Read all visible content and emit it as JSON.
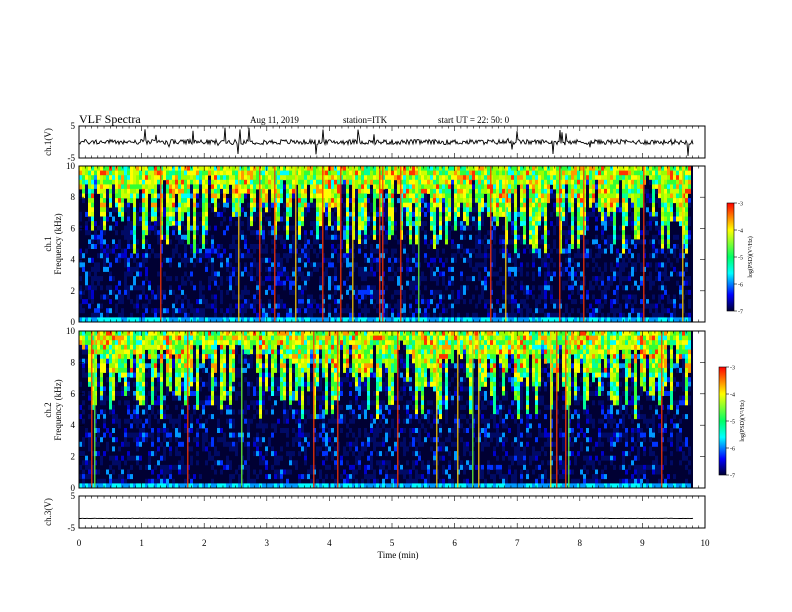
{
  "header": {
    "title": "VLF Spectra",
    "date": "Aug 11, 2019",
    "station": "station=ITK",
    "start": "start  UT  =   22: 50: 0"
  },
  "colors": {
    "background": "#ffffff",
    "spectrogram_floor": "#000033",
    "waveform": "#000000"
  },
  "colorbar": {
    "label": "log(PSD)(V²/Hz)",
    "ticks": [
      "-3",
      "-4",
      "-5",
      "-6",
      "-7"
    ],
    "scale": [
      "#ff0000",
      "#ffff00",
      "#00ff66",
      "#00ffff",
      "#0000ff",
      "#000033"
    ]
  },
  "chart_data": [
    {
      "type": "line",
      "panel": "ch1-waveform",
      "ylabel": "ch.1(V)",
      "ylim": [
        -5,
        5
      ],
      "yticks": [
        "5",
        "-5"
      ],
      "xlim": [
        0,
        10
      ],
      "baseline": 0,
      "series": [
        {
          "values": "noise around 0 V with spikes up to about ±5 V"
        }
      ]
    },
    {
      "type": "heatmap",
      "panel": "ch1-spectrogram",
      "ylabel": "ch.1\nFrequency (kHz)",
      "ylim": [
        0,
        10
      ],
      "yticks": [
        "0",
        "2",
        "4",
        "6",
        "8",
        "10"
      ],
      "xlim": [
        0,
        10
      ],
      "zlabel": "log(PSD)(V²/Hz)",
      "zlim": [
        -7,
        -3
      ]
    },
    {
      "type": "heatmap",
      "panel": "ch2-spectrogram",
      "ylabel": "ch.2\nFrequency (kHz)",
      "ylim": [
        0,
        10
      ],
      "yticks": [
        "0",
        "2",
        "4",
        "6",
        "8",
        "10"
      ],
      "xlim": [
        0,
        10
      ],
      "zlabel": "log(PSD)(V²/Hz)",
      "zlim": [
        -7,
        -3
      ]
    },
    {
      "type": "line",
      "panel": "ch3-waveform",
      "ylabel": "ch.3(V)",
      "ylim": [
        -5,
        5
      ],
      "yticks": [
        "5",
        "-5"
      ],
      "xlim": [
        0,
        10
      ],
      "baseline": -2,
      "xlabel": "Time  (min)",
      "xticks": [
        "0",
        "1",
        "2",
        "3",
        "4",
        "5",
        "6",
        "7",
        "8",
        "9",
        "10"
      ],
      "series": [
        {
          "values": "flat trace near -2 V"
        }
      ]
    }
  ]
}
